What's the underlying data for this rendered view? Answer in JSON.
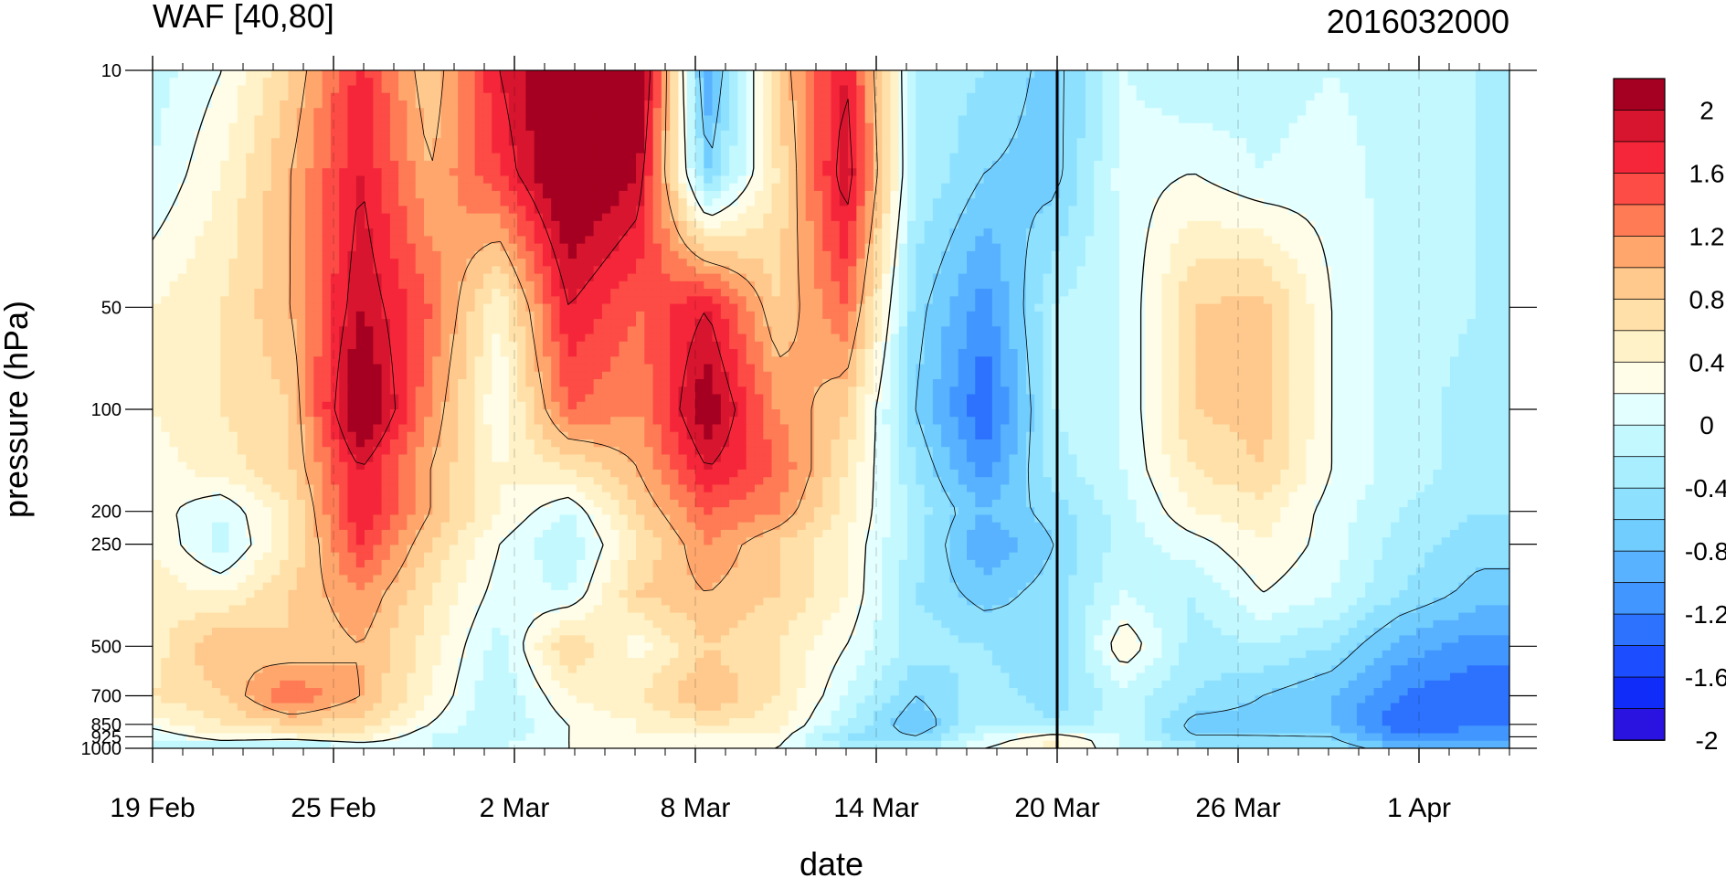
{
  "chart_data": {
    "type": "heatmap",
    "title": "WAF [40,80]",
    "subtitle": "2016032000",
    "xlabel": "date",
    "ylabel": "pressure (hPa)",
    "y_scale": "log",
    "y_reversed": true,
    "xlim": [
      "2016-02-19",
      "2016-04-04"
    ],
    "ylim": [
      1000,
      10
    ],
    "x_ticks": [
      "19 Feb",
      "25 Feb",
      "2 Mar",
      "8 Mar",
      "14 Mar",
      "20 Mar",
      "26 Mar",
      "1 Apr"
    ],
    "x_tick_dates": [
      "2016-02-19",
      "2016-02-25",
      "2016-03-02",
      "2016-03-08",
      "2016-03-14",
      "2016-03-20",
      "2016-03-26",
      "2016-04-01"
    ],
    "y_ticks": [
      10,
      50,
      100,
      200,
      250,
      500,
      700,
      850,
      925,
      1000
    ],
    "y_tick_labels": [
      "10",
      "50",
      "100",
      "200",
      "250",
      "500",
      "700",
      "850",
      "925",
      "1000"
    ],
    "vertical_line_date": "2016-03-20",
    "contour_levels": [
      -2.2,
      -2,
      -1.8,
      -1.6,
      -1.4,
      -1.2,
      -1,
      -0.8,
      -0.6,
      -0.4,
      -0.2,
      0,
      0.2,
      0.4,
      0.6,
      0.8,
      1,
      1.2,
      1.4,
      1.6,
      1.8,
      2,
      2.2
    ],
    "colorbar": {
      "labels": [
        "2",
        "1.6",
        "1.2",
        "0.8",
        "0.4",
        "0",
        "-0.4",
        "-0.8",
        "-1.2",
        "-1.6",
        "-2"
      ],
      "label_values": [
        2,
        1.6,
        1.2,
        0.8,
        0.4,
        0,
        -0.4,
        -0.8,
        -1.2,
        -1.6,
        -2
      ],
      "colors_top_to_bottom": [
        "#a50021",
        "#d8152f",
        "#f6263a",
        "#fd4b45",
        "#ff7b55",
        "#ffa66c",
        "#ffc88c",
        "#ffe0a8",
        "#fff2c8",
        "#fffde8",
        "#e4ffff",
        "#c3f8ff",
        "#a8eeff",
        "#8ee0ff",
        "#72cdff",
        "#58b2ff",
        "#4296ff",
        "#2c72ff",
        "#1c4eff",
        "#0f2cf8",
        "#2a12e0"
      ]
    },
    "x": [
      0,
      2,
      4,
      6,
      8,
      10,
      12,
      14,
      16,
      18,
      20,
      22,
      24,
      26,
      28,
      30,
      32,
      34,
      36,
      38,
      40,
      42,
      44
    ],
    "x_unit": "days from 19 Feb 2016",
    "y": [
      10,
      20,
      50,
      100,
      150,
      200,
      250,
      350,
      500,
      700,
      850,
      925,
      1000
    ],
    "values": [
      [
        -0.3,
        0.0,
        0.6,
        1.5,
        0.6,
        1.6,
        2.2,
        2.2,
        -1.2,
        0.6,
        1.6,
        -0.4,
        -0.6,
        -0.9,
        -0.2,
        -0.4,
        -0.3,
        -0.2,
        -0.3,
        -0.4
      ],
      [
        -0.2,
        0.2,
        0.8,
        1.6,
        0.8,
        1.4,
        2.2,
        1.8,
        -0.8,
        0.4,
        1.8,
        -0.4,
        -0.8,
        -0.9,
        -0.1,
        0.0,
        -0.2,
        -0.1,
        -0.3,
        -0.4
      ],
      [
        0.2,
        0.4,
        0.8,
        1.8,
        1.2,
        0.2,
        1.6,
        1.2,
        1.6,
        0.6,
        1.2,
        -0.7,
        -1.3,
        -0.4,
        -0.2,
        0.6,
        0.7,
        0.0,
        -0.3,
        -0.4
      ],
      [
        0.2,
        0.4,
        0.6,
        2.2,
        1.0,
        0.0,
        1.2,
        1.0,
        2.0,
        1.0,
        0.6,
        -0.8,
        -1.6,
        -0.4,
        -0.2,
        0.6,
        0.7,
        0.0,
        -0.3,
        -0.5
      ],
      [
        0.1,
        0.3,
        0.6,
        1.6,
        0.8,
        0.2,
        0.4,
        0.8,
        1.6,
        1.2,
        0.4,
        -0.6,
        -1.3,
        -0.5,
        -0.2,
        0.4,
        0.6,
        0.0,
        -0.3,
        -0.5
      ],
      [
        0.1,
        -0.2,
        0.4,
        1.6,
        0.8,
        0.2,
        -0.2,
        0.6,
        1.2,
        1.0,
        0.3,
        -0.5,
        -1.0,
        -0.7,
        -0.3,
        0.2,
        0.3,
        -0.1,
        -0.4,
        -0.6
      ],
      [
        0.2,
        -0.3,
        0.4,
        1.4,
        0.6,
        0.0,
        -0.4,
        0.4,
        1.0,
        0.6,
        0.2,
        -0.5,
        -1.2,
        -0.8,
        -0.3,
        -0.1,
        0.2,
        -0.1,
        -0.5,
        -0.7
      ],
      [
        0.3,
        0.2,
        0.6,
        1.0,
        0.4,
        -0.1,
        -0.2,
        0.6,
        0.8,
        0.6,
        0.2,
        -0.6,
        -0.9,
        -0.7,
        -0.2,
        -0.4,
        0.0,
        -0.2,
        -0.6,
        -0.9
      ],
      [
        0.3,
        0.8,
        0.6,
        0.8,
        0.3,
        -0.3,
        0.6,
        0.1,
        0.6,
        0.4,
        0.0,
        -0.5,
        -0.6,
        -0.8,
        0.2,
        -0.5,
        -0.4,
        -0.6,
        -1.1,
        -1.3
      ],
      [
        0.4,
        0.6,
        1.2,
        0.8,
        0.2,
        -0.4,
        0.2,
        0.4,
        0.8,
        0.4,
        -0.2,
        -0.8,
        -0.5,
        -0.7,
        -0.3,
        -0.6,
        -0.8,
        -1.0,
        -1.4,
        -1.6
      ],
      [
        0.1,
        0.4,
        0.6,
        0.5,
        0.0,
        -0.4,
        0.0,
        0.2,
        0.4,
        0.3,
        -0.4,
        -1.0,
        -0.4,
        -0.6,
        -0.2,
        -0.9,
        -0.9,
        -1.0,
        -1.6,
        -1.4
      ],
      [
        -0.2,
        0.2,
        0.2,
        0.3,
        -0.2,
        -0.3,
        0.0,
        0.2,
        0.2,
        0.1,
        -0.6,
        -0.8,
        -0.2,
        0.2,
        -0.2,
        -0.8,
        -0.8,
        -0.8,
        -1.4,
        -1.3
      ],
      [
        -0.4,
        -0.4,
        -0.6,
        -0.3,
        -0.2,
        -0.2,
        0.0,
        0.1,
        0.2,
        0.0,
        -0.4,
        -0.5,
        0.0,
        0.3,
        -0.2,
        -0.5,
        -0.6,
        -0.6,
        -1.0,
        -1.0
      ]
    ],
    "values_x": [
      0,
      2.3,
      4.6,
      6.9,
      9.2,
      11.5,
      13.8,
      16.1,
      18.4,
      20.7,
      23.0,
      25.3,
      27.6,
      29.9,
      32.2,
      34.5,
      36.8,
      39.1,
      41.4,
      44.0
    ],
    "values_unit": "contoured field, read approximately from the colour bands"
  }
}
